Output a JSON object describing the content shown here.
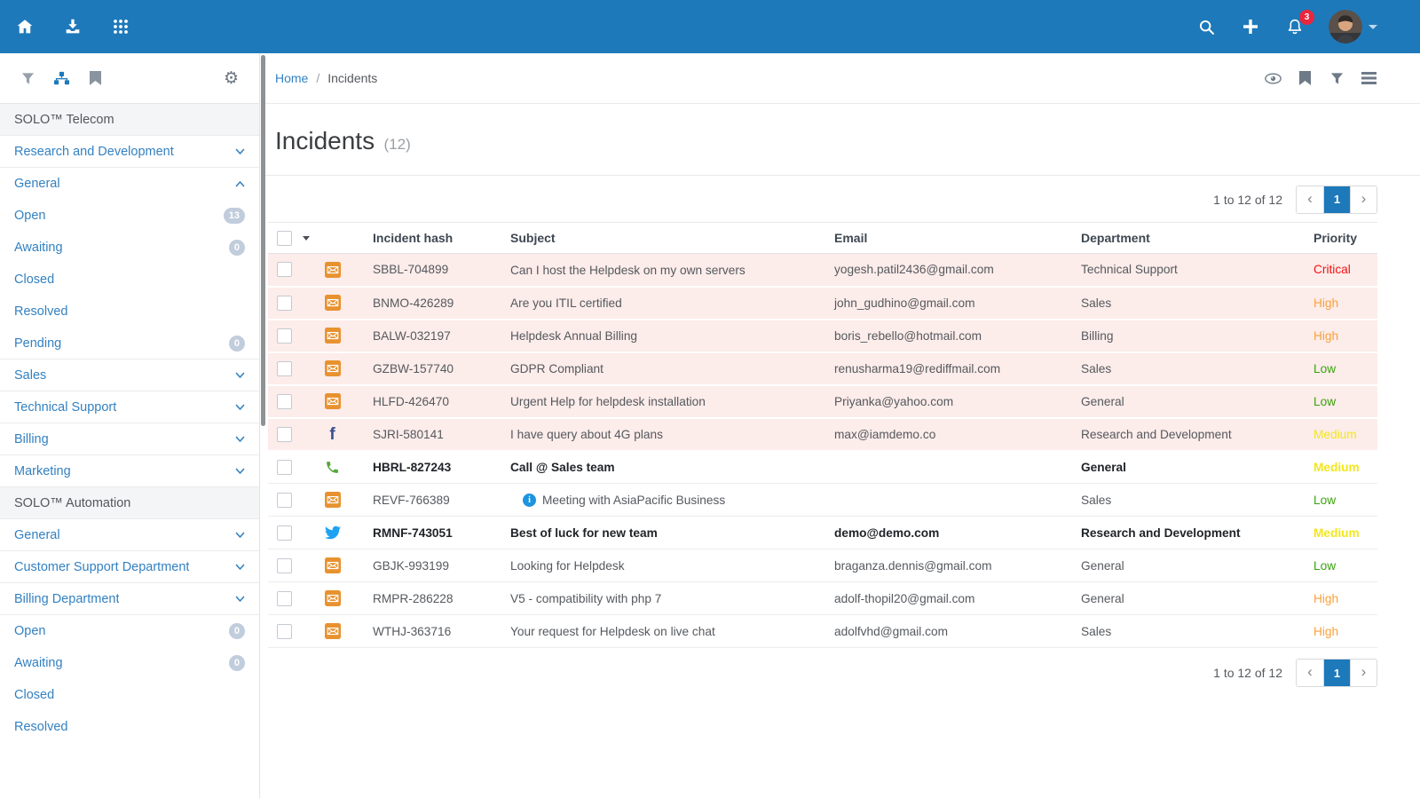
{
  "navbar": {
    "notification_count": "3"
  },
  "breadcrumb": {
    "home": "Home",
    "separator": "/",
    "current": "Incidents"
  },
  "page": {
    "title": "Incidents",
    "count": "(12)"
  },
  "pagination": {
    "range_text": "1 to 12 of 12",
    "current_page": "1",
    "prev_icon": "‹",
    "next_icon": "›"
  },
  "sidebar": {
    "items": [
      {
        "type": "header",
        "label": "SOLO™ Telecom"
      },
      {
        "type": "dept",
        "label": "Research and Development",
        "chevron": "down"
      },
      {
        "type": "dept",
        "label": "General",
        "chevron": "up"
      },
      {
        "type": "status",
        "label": "Open",
        "badge": "13"
      },
      {
        "type": "status",
        "label": "Awaiting",
        "badge": "0"
      },
      {
        "type": "status",
        "label": "Closed"
      },
      {
        "type": "status",
        "label": "Resolved"
      },
      {
        "type": "status",
        "label": "Pending",
        "badge": "0"
      },
      {
        "type": "dept",
        "label": "Sales",
        "chevron": "down"
      },
      {
        "type": "dept",
        "label": "Technical Support",
        "chevron": "down"
      },
      {
        "type": "dept",
        "label": "Billing",
        "chevron": "down"
      },
      {
        "type": "dept",
        "label": "Marketing",
        "chevron": "down"
      },
      {
        "type": "header",
        "label": "SOLO™ Automation"
      },
      {
        "type": "dept",
        "label": "General",
        "chevron": "down"
      },
      {
        "type": "dept",
        "label": "Customer Support Department",
        "chevron": "down"
      },
      {
        "type": "dept",
        "label": "Billing Department",
        "chevron": "down"
      },
      {
        "type": "status",
        "label": "Open",
        "badge": "0"
      },
      {
        "type": "status",
        "label": "Awaiting",
        "badge": "0"
      },
      {
        "type": "status",
        "label": "Closed"
      },
      {
        "type": "status",
        "label": "Resolved"
      }
    ]
  },
  "table": {
    "columns": {
      "hash": "Incident hash",
      "subject": "Subject",
      "email": "Email",
      "department": "Department",
      "priority": "Priority"
    },
    "rows": [
      {
        "channel": "email",
        "hash": "SBBL-704899",
        "subject": "Can I host the Helpdesk on my own servers",
        "email": "yogesh.patil2436@gmail.com",
        "department": "Technical Support",
        "priority": "Critical",
        "unread": true,
        "bold": false,
        "info": false
      },
      {
        "channel": "email",
        "hash": "BNMO-426289",
        "subject": "Are you ITIL certified",
        "email": "john_gudhino@gmail.com",
        "department": "Sales",
        "priority": "High",
        "unread": true,
        "bold": false,
        "info": false
      },
      {
        "channel": "email",
        "hash": "BALW-032197",
        "subject": "Helpdesk Annual Billing",
        "email": "boris_rebello@hotmail.com",
        "department": "Billing",
        "priority": "High",
        "unread": true,
        "bold": false,
        "info": false
      },
      {
        "channel": "email",
        "hash": "GZBW-157740",
        "subject": "GDPR Compliant",
        "email": "renusharma19@rediffmail.com",
        "department": "Sales",
        "priority": "Low",
        "unread": true,
        "bold": false,
        "info": false
      },
      {
        "channel": "email",
        "hash": "HLFD-426470",
        "subject": "Urgent Help for helpdesk installation",
        "email": "Priyanka@yahoo.com",
        "department": "General",
        "priority": "Low",
        "unread": true,
        "bold": false,
        "info": false
      },
      {
        "channel": "facebook",
        "hash": "SJRI-580141",
        "subject": "I have query about 4G plans",
        "email": "max@iamdemo.co",
        "department": "Research and Development",
        "priority": "Medium",
        "unread": true,
        "bold": false,
        "info": false
      },
      {
        "channel": "phone",
        "hash": "HBRL-827243",
        "subject": "Call @ Sales team",
        "email": "",
        "department": "General",
        "priority": "Medium",
        "unread": false,
        "bold": true,
        "info": false
      },
      {
        "channel": "email",
        "hash": "REVF-766389",
        "subject": "Meeting with AsiaPacific Business",
        "email": "",
        "department": "Sales",
        "priority": "Low",
        "unread": false,
        "bold": false,
        "info": true
      },
      {
        "channel": "twitter",
        "hash": "RMNF-743051",
        "subject": "Best of luck for new team",
        "email": "demo@demo.com",
        "department": "Research and Development",
        "priority": "Medium",
        "unread": false,
        "bold": true,
        "info": false
      },
      {
        "channel": "email",
        "hash": "GBJK-993199",
        "subject": "Looking for Helpdesk",
        "email": "braganza.dennis@gmail.com",
        "department": "General",
        "priority": "Low",
        "unread": false,
        "bold": false,
        "info": false
      },
      {
        "channel": "email",
        "hash": "RMPR-286228",
        "subject": "V5 - compatibility with php 7",
        "email": "adolf-thopil20@gmail.com",
        "department": "General",
        "priority": "High",
        "unread": false,
        "bold": false,
        "info": false
      },
      {
        "channel": "email",
        "hash": "WTHJ-363716",
        "subject": "Your request for Helpdesk on live chat",
        "email": "adolfvhd@gmail.com",
        "department": "Sales",
        "priority": "High",
        "unread": false,
        "bold": false,
        "info": false
      }
    ]
  },
  "colors": {
    "accent": "#1d79ba",
    "unread_row_bg": "#fcecea",
    "badge_bg": "#c1cddc",
    "priority": {
      "Critical": "#f61111",
      "High": "#f9a13a",
      "Low": "#39a30c",
      "Medium": "#f2e71c"
    }
  }
}
